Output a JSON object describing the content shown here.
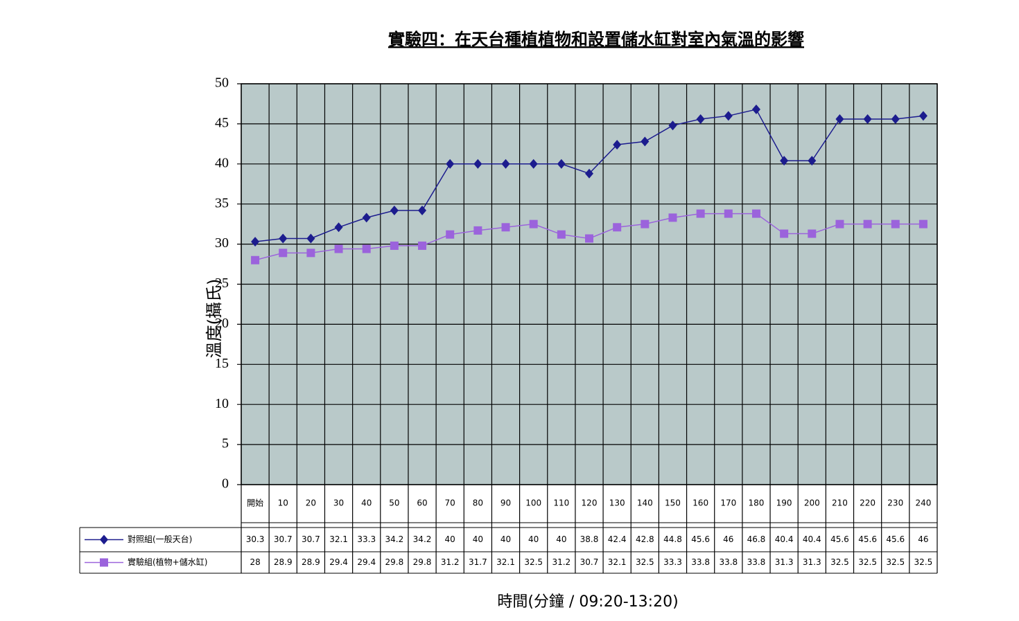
{
  "chart_data": {
    "type": "line",
    "title": "實驗四：在天台種植植物和設置儲水缸對室內氣溫的影響",
    "y_label": "溫度(攝氏)",
    "x_label": "時間(分鐘 / 09:20-13:20)",
    "categories": [
      "開始",
      "10",
      "20",
      "30",
      "40",
      "50",
      "60",
      "70",
      "80",
      "90",
      "100",
      "110",
      "120",
      "130",
      "140",
      "150",
      "160",
      "170",
      "180",
      "190",
      "200",
      "210",
      "220",
      "230",
      "240"
    ],
    "series": [
      {
        "name": "對照組(一般天台)",
        "color": "#1c1c8e",
        "marker": "diamond",
        "values": [
          30.3,
          30.7,
          30.7,
          32.1,
          33.3,
          34.2,
          34.2,
          40,
          40,
          40,
          40,
          40,
          38.8,
          42.4,
          42.8,
          44.8,
          45.6,
          46,
          46.8,
          40.4,
          40.4,
          45.6,
          45.6,
          45.6,
          46
        ]
      },
      {
        "name": "實驗組(植物+儲水缸)",
        "color": "#9b63dc",
        "marker": "square",
        "values": [
          28,
          28.9,
          28.9,
          29.4,
          29.4,
          29.8,
          29.8,
          31.2,
          31.7,
          32.1,
          32.5,
          31.2,
          30.7,
          32.1,
          32.5,
          33.3,
          33.8,
          33.8,
          33.8,
          31.3,
          31.3,
          32.5,
          32.5,
          32.5,
          32.5
        ]
      }
    ],
    "ylim": [
      0,
      50
    ],
    "yticks": [
      0,
      5,
      10,
      15,
      20,
      25,
      30,
      35,
      40,
      45,
      50
    ],
    "grid": true
  }
}
